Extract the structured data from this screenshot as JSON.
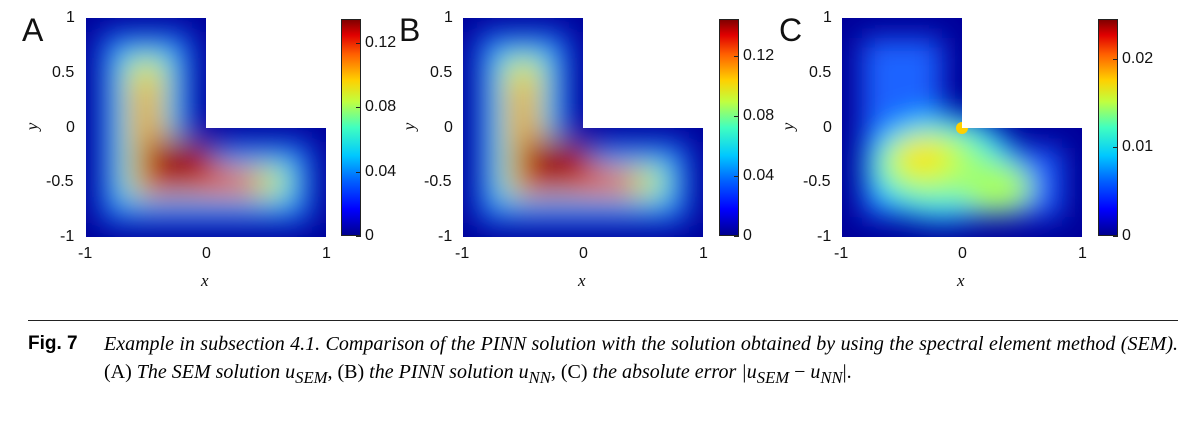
{
  "panels": [
    {
      "label": "A",
      "xticks": [
        "-1",
        "0",
        "1"
      ],
      "yticks": [
        "1",
        "0.5",
        "0",
        "-0.5",
        "-1"
      ],
      "xlabel": "x",
      "ylabel": "y",
      "cbar_ticks": [
        "0.12",
        "0.08",
        "0.04",
        "0"
      ],
      "cbar_values": [
        0.12,
        0.08,
        0.04,
        0
      ],
      "cbar_max": 0.135,
      "kind": "solution"
    },
    {
      "label": "B",
      "xticks": [
        "-1",
        "0",
        "1"
      ],
      "yticks": [
        "1",
        "0.5",
        "0",
        "-0.5",
        "-1"
      ],
      "xlabel": "x",
      "ylabel": "y",
      "cbar_ticks": [
        "0.12",
        "0.08",
        "0.04",
        "0"
      ],
      "cbar_values": [
        0.12,
        0.08,
        0.04,
        0
      ],
      "cbar_max": 0.145,
      "kind": "solution"
    },
    {
      "label": "C",
      "xticks": [
        "-1",
        "0",
        "1"
      ],
      "yticks": [
        "1",
        "0.5",
        "0",
        "-0.5",
        "-1"
      ],
      "xlabel": "x",
      "ylabel": "y",
      "cbar_ticks": [
        "0.02",
        "0.01",
        "0"
      ],
      "cbar_values": [
        0.02,
        0.01,
        0
      ],
      "cbar_max": 0.0245,
      "kind": "error"
    }
  ],
  "caption": {
    "fig_label": "Fig. 7",
    "text_1": "Example in subsection 4.1.  Comparison of the PINN solution with the solution obtained by using the spectral element method (SEM).",
    "text_2": " (A) ",
    "text_3": "The SEM solution ",
    "text_4": "u",
    "text_5": "SEM",
    "text_6": ", (B) ",
    "text_7": "the PINN solution ",
    "text_8": "u",
    "text_9": "NN",
    "text_10": ", (C) ",
    "text_11": "the absolute error |",
    "text_12": "u",
    "text_13": "SEM",
    "text_14": " − ",
    "text_15": "u",
    "text_16": "NN",
    "text_17": "|."
  }
}
